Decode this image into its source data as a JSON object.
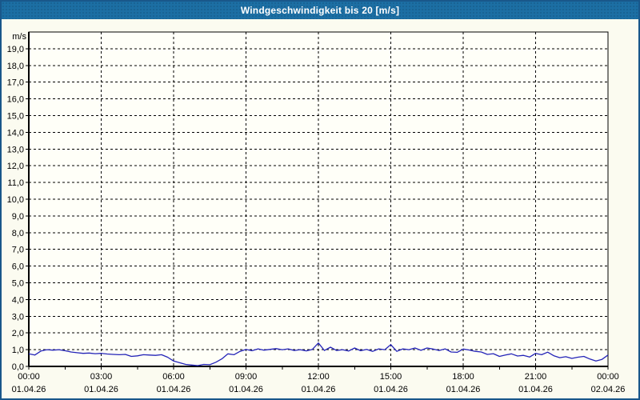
{
  "title_bar": {
    "title": "Windgeschwindigkeit bis 20 [m/s]"
  },
  "colors": {
    "titlebar_bg": "#1c6fa4",
    "titlebar_dot": "#185f8e",
    "titlebar_text": "#ffffff",
    "page_border": "#19578a",
    "page_bg": "#fbfbf0",
    "plot_bg": "#fffff8",
    "grid": "#000000",
    "axis": "#000000",
    "tick_text": "#000000",
    "line": "#2424b8"
  },
  "chart_data": {
    "type": "line",
    "title": "Windgeschwindigkeit bis 20 [m/s]",
    "ylabel_unit": "m/s",
    "ylim": [
      0,
      20
    ],
    "xlim_hours": [
      0,
      24
    ],
    "grid": "dashed-black",
    "legend": "none",
    "y_ticks": [
      {
        "value": 19,
        "label": "19,0"
      },
      {
        "value": 18,
        "label": "18,0"
      },
      {
        "value": 17,
        "label": "17,0"
      },
      {
        "value": 16,
        "label": "16,0"
      },
      {
        "value": 15,
        "label": "15,0"
      },
      {
        "value": 14,
        "label": "14,0"
      },
      {
        "value": 13,
        "label": "13,0"
      },
      {
        "value": 12,
        "label": "12,0"
      },
      {
        "value": 11,
        "label": "11,0"
      },
      {
        "value": 10,
        "label": "10,0"
      },
      {
        "value": 9,
        "label": "9,0"
      },
      {
        "value": 8,
        "label": "8,0"
      },
      {
        "value": 7,
        "label": "7,0"
      },
      {
        "value": 6,
        "label": "6,0"
      },
      {
        "value": 5,
        "label": "5,0"
      },
      {
        "value": 4,
        "label": "4,0"
      },
      {
        "value": 3,
        "label": "3,0"
      },
      {
        "value": 2,
        "label": "2,0"
      },
      {
        "value": 1,
        "label": "1,0"
      },
      {
        "value": 0,
        "label": "0,0"
      }
    ],
    "x_ticks": [
      {
        "hour": 0,
        "time": "00:00",
        "date": "01.04.26"
      },
      {
        "hour": 3,
        "time": "03:00",
        "date": "01.04.26"
      },
      {
        "hour": 6,
        "time": "06:00",
        "date": "01.04.26"
      },
      {
        "hour": 9,
        "time": "09:00",
        "date": "01.04.26"
      },
      {
        "hour": 12,
        "time": "12:00",
        "date": "01.04.26"
      },
      {
        "hour": 15,
        "time": "15:00",
        "date": "01.04.26"
      },
      {
        "hour": 18,
        "time": "18:00",
        "date": "01.04.26"
      },
      {
        "hour": 21,
        "time": "21:00",
        "date": "01.04.26"
      },
      {
        "hour": 24,
        "time": "00:00",
        "date": "02.04.26"
      }
    ],
    "x_minor_tick_hours": 1.5,
    "series": [
      {
        "name": "Windgeschwindigkeit",
        "color": "#2424b8",
        "x_start_hour": 0,
        "x_step_hours": 0.25,
        "values": [
          0.75,
          0.68,
          0.92,
          1.0,
          0.97,
          1.0,
          0.94,
          0.86,
          0.82,
          0.78,
          0.8,
          0.76,
          0.78,
          0.74,
          0.72,
          0.7,
          0.72,
          0.6,
          0.63,
          0.7,
          0.68,
          0.66,
          0.7,
          0.55,
          0.32,
          0.22,
          0.12,
          0.08,
          0.05,
          0.12,
          0.1,
          0.25,
          0.45,
          0.75,
          0.7,
          0.9,
          1.02,
          0.94,
          1.05,
          0.97,
          1.02,
          1.06,
          1.0,
          1.05,
          0.95,
          1.0,
          0.93,
          1.02,
          1.4,
          0.95,
          1.15,
          0.95,
          1.0,
          0.92,
          1.1,
          0.94,
          1.02,
          0.9,
          1.05,
          1.0,
          1.3,
          0.9,
          1.05,
          1.0,
          1.1,
          0.96,
          1.1,
          1.04,
          0.95,
          1.05,
          0.86,
          0.84,
          1.04,
          0.98,
          0.9,
          0.86,
          0.72,
          0.76,
          0.6,
          0.68,
          0.75,
          0.62,
          0.66,
          0.56,
          0.78,
          0.7,
          0.85,
          0.64,
          0.52,
          0.58,
          0.48,
          0.55,
          0.6,
          0.44,
          0.32,
          0.42,
          0.68
        ]
      }
    ]
  }
}
